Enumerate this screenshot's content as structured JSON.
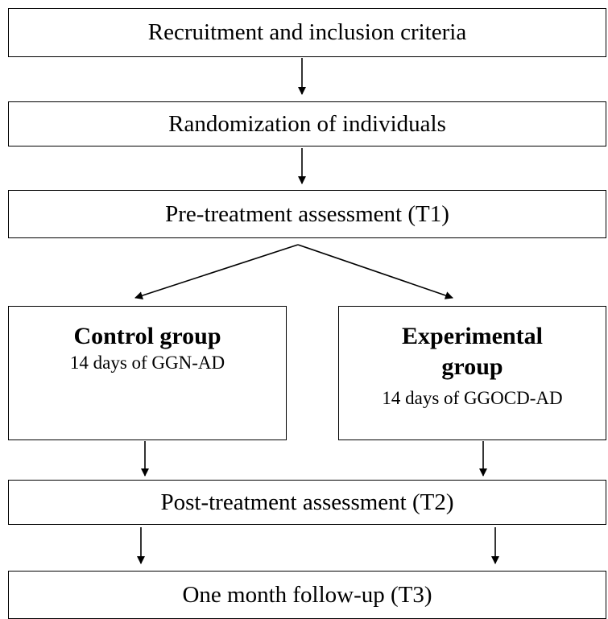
{
  "nodes": [
    {
      "label": "Recruitment and inclusion criteria"
    },
    {
      "label": "Randomization of individuals"
    },
    {
      "label": "Pre-treatment assessment (T1)"
    },
    {
      "title": "Control group",
      "label": "14 days of GGN-AD"
    },
    {
      "title": "Experimental group",
      "label": "14 days of GGOCD-AD"
    },
    {
      "label": "Post-treatment assessment (T2)"
    },
    {
      "label": "One month follow-up (T3)"
    }
  ]
}
